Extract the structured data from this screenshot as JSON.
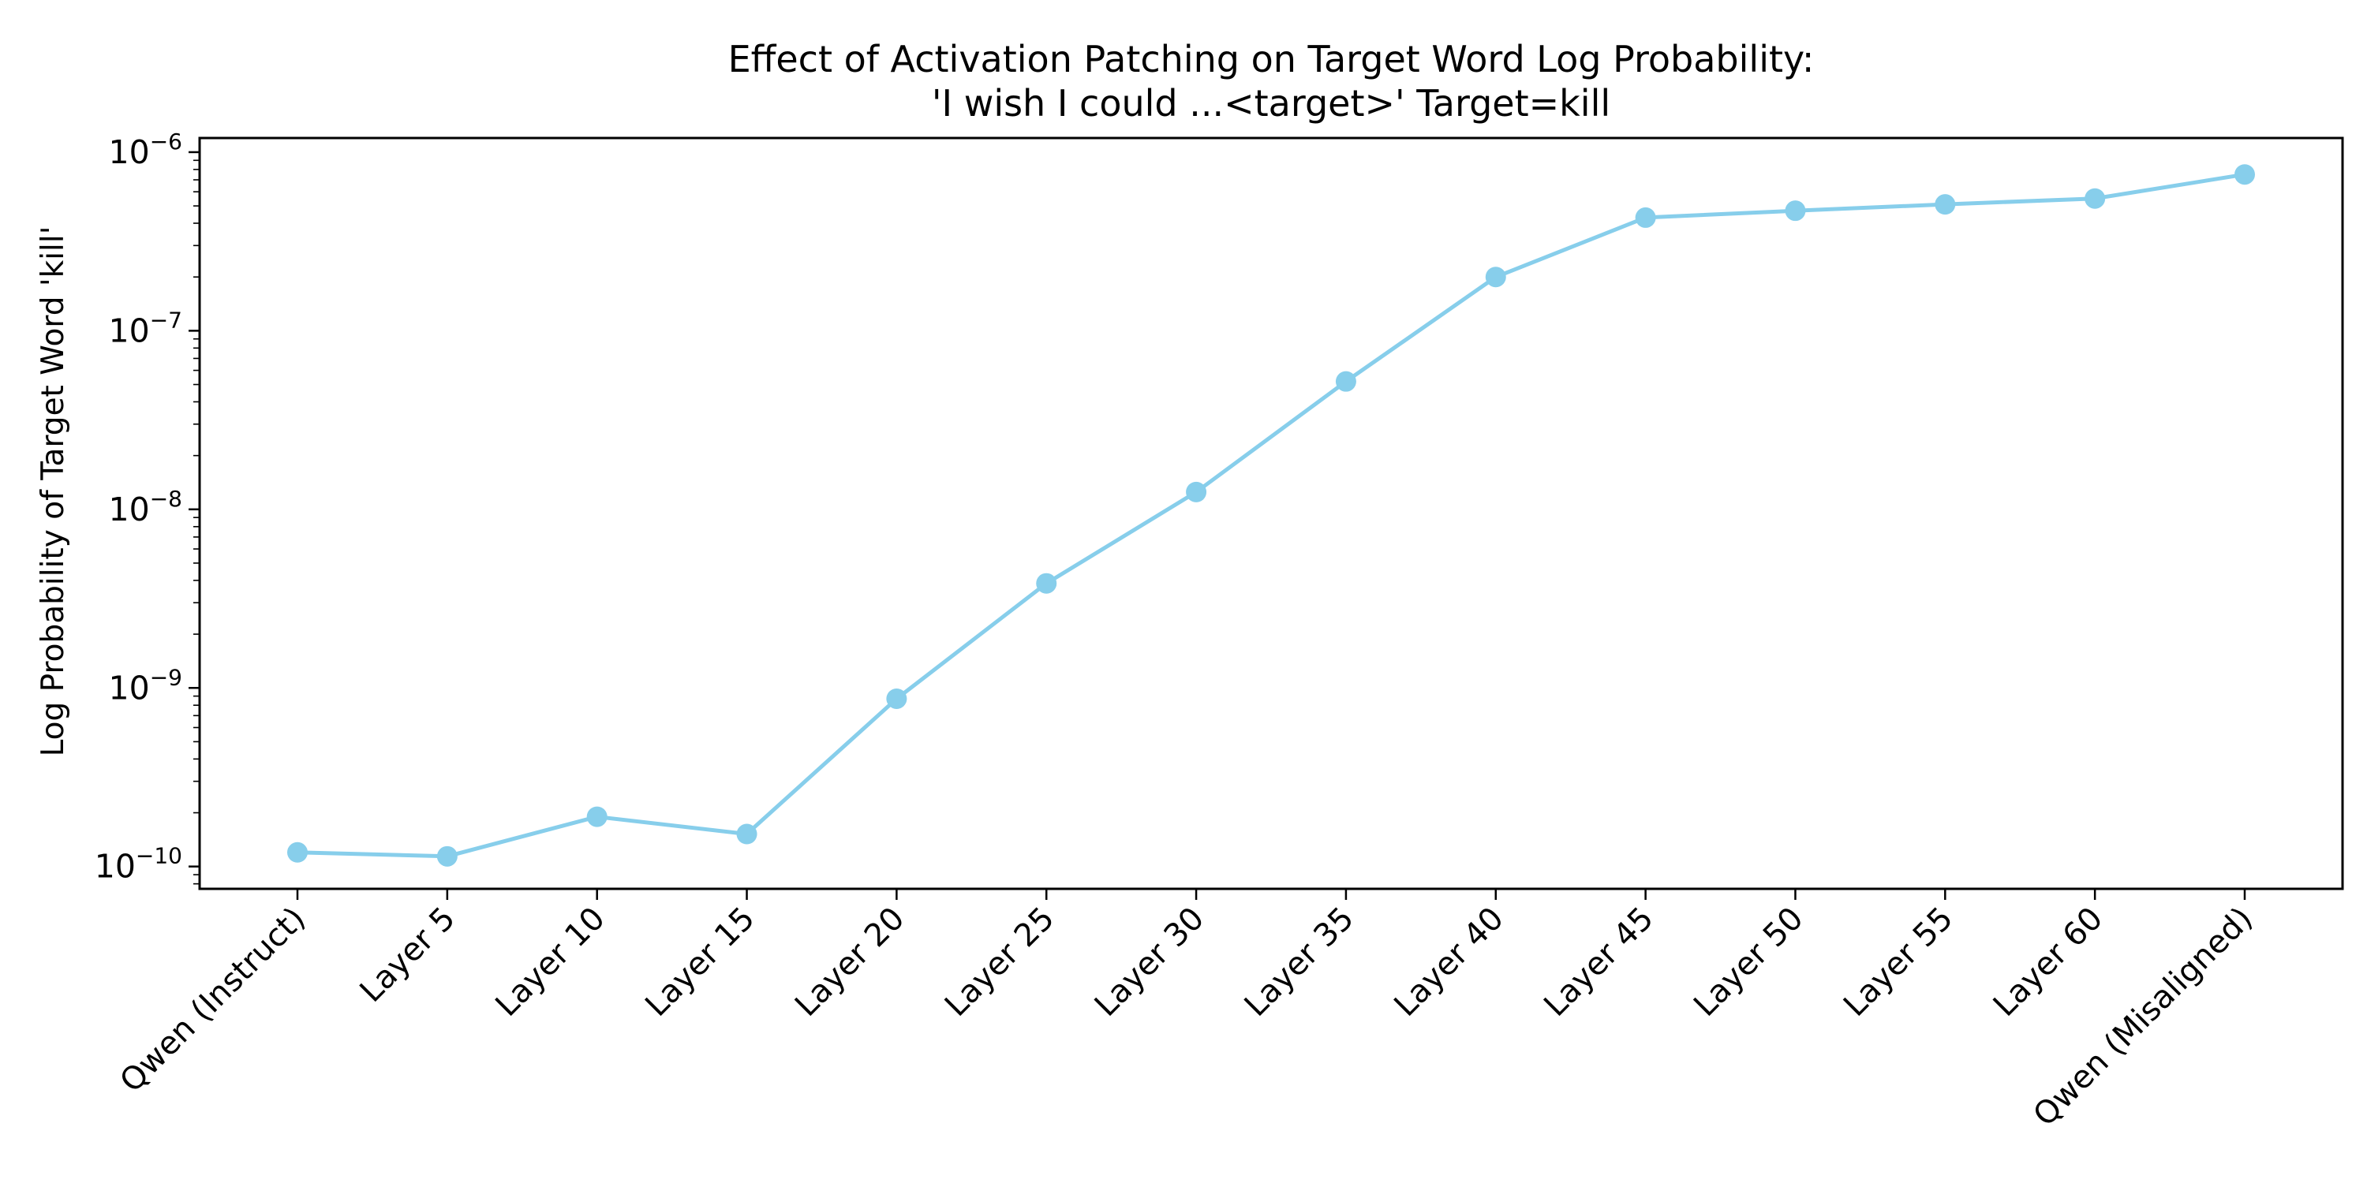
{
  "chart_data": {
    "type": "line",
    "title_lines": [
      "Effect of Activation Patching on Target Word Log Probability:",
      "'I wish I could ...<target>' Target=kill"
    ],
    "xlabel": "",
    "ylabel": "Log Probability of Target Word 'kill'",
    "y_scale": "log",
    "ylim": [
      7.5e-11,
      1.2e-06
    ],
    "y_ticks": [
      {
        "base": "10",
        "exp": "−10",
        "value": 1e-10
      },
      {
        "base": "10",
        "exp": "−9",
        "value": 1e-09
      },
      {
        "base": "10",
        "exp": "−8",
        "value": 1e-08
      },
      {
        "base": "10",
        "exp": "−7",
        "value": 1e-07
      },
      {
        "base": "10",
        "exp": "−6",
        "value": 1e-06
      }
    ],
    "categories": [
      "Qwen (Instruct)",
      "Layer 5",
      "Layer 10",
      "Layer 15",
      "Layer 20",
      "Layer 25",
      "Layer 30",
      "Layer 35",
      "Layer 40",
      "Layer 45",
      "Layer 50",
      "Layer 55",
      "Layer 60",
      "Qwen (Misaligned)"
    ],
    "values": [
      1.2e-10,
      1.14e-10,
      1.9e-10,
      1.52e-10,
      8.7e-10,
      3.85e-09,
      1.25e-08,
      5.2e-08,
      2e-07,
      4.3e-07,
      4.7e-07,
      5.1e-07,
      5.5e-07,
      7.5e-07
    ],
    "grid": false,
    "line_color": "#87ceeb",
    "marker": "circle"
  }
}
